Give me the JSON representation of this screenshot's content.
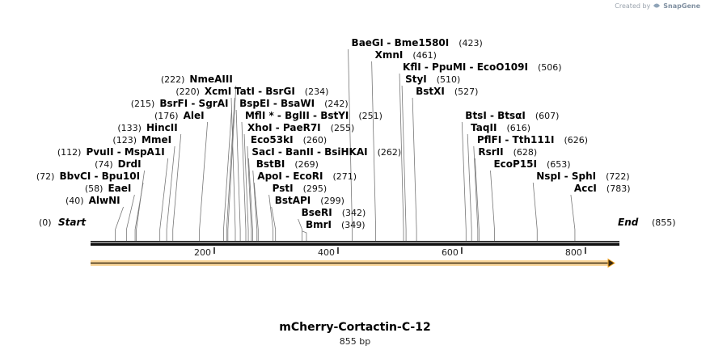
{
  "credit": {
    "prefix": "Created by",
    "brand": "SnapGene",
    "icon": "snapgene-logo-icon"
  },
  "plasmid": {
    "name": "mCherry-Cortactin-C-12",
    "length_label": "855 bp",
    "length_bp": 855
  },
  "ends": {
    "start": {
      "label": "Start",
      "pos": "(0)"
    },
    "end": {
      "label": "End",
      "pos": "(855)"
    }
  },
  "ticks": [
    {
      "bp": 200,
      "label": "200"
    },
    {
      "bp": 400,
      "label": "400"
    },
    {
      "bp": 600,
      "label": "600"
    },
    {
      "bp": 800,
      "label": "800"
    }
  ],
  "feature": {
    "type": "ORF",
    "direction": "forward",
    "start_bp": 0,
    "end_bp": 855,
    "color": "#f5a623"
  },
  "sites": [
    {
      "id": "alwni",
      "bp": 40,
      "pos": "(40)",
      "names": "AlwNI",
      "side": "left",
      "row": 11
    },
    {
      "id": "eaei",
      "bp": 58,
      "pos": "(58)",
      "names": "EaeI",
      "side": "left",
      "row": 10
    },
    {
      "id": "bbvci",
      "bp": 72,
      "pos": "(72)",
      "names": "BbvCI  - Bpu10I",
      "side": "left",
      "row": 9
    },
    {
      "id": "drdi",
      "bp": 74,
      "pos": "(74)",
      "names": "DrdI",
      "side": "left",
      "row": 8
    },
    {
      "id": "pvuii",
      "bp": 112,
      "pos": "(112)",
      "names": "PvuII  - MspA1I",
      "side": "left",
      "row": 7
    },
    {
      "id": "mmei",
      "bp": 123,
      "pos": "(123)",
      "names": "MmeI",
      "side": "left",
      "row": 6
    },
    {
      "id": "hincii",
      "bp": 133,
      "pos": "(133)",
      "names": "HincII",
      "side": "left",
      "row": 5
    },
    {
      "id": "alei",
      "bp": 176,
      "pos": "(176)",
      "names": "AleI",
      "side": "left",
      "row": 4
    },
    {
      "id": "bsrfi",
      "bp": 215,
      "pos": "(215)",
      "names": "BsrFI  - SgrAI",
      "side": "left",
      "row": 3
    },
    {
      "id": "xcmi",
      "bp": 220,
      "pos": "(220)",
      "names": "XcmI",
      "side": "left",
      "row": 2
    },
    {
      "id": "nmeaiii",
      "bp": 222,
      "pos": "(222)",
      "names": "NmeAIII",
      "side": "left",
      "row": 1
    },
    {
      "id": "tati",
      "bp": 234,
      "pos": "(234)",
      "names": "TatI  - BsrGI",
      "side": "right",
      "row": 2
    },
    {
      "id": "bspei",
      "bp": 242,
      "pos": "(242)",
      "names": "BspEI  - BsaWI",
      "side": "right",
      "row": 3
    },
    {
      "id": "mfli",
      "bp": 251,
      "pos": "(251)",
      "names": "MflI *  - BglII  - BstYI",
      "side": "right",
      "row": 4
    },
    {
      "id": "xhoi",
      "bp": 255,
      "pos": "(255)",
      "names": "XhoI  - PaeR7I",
      "side": "right",
      "row": 5
    },
    {
      "id": "eco53ki",
      "bp": 260,
      "pos": "(260)",
      "names": "Eco53kI",
      "side": "right",
      "row": 6
    },
    {
      "id": "saci",
      "bp": 262,
      "pos": "(262)",
      "names": "SacI  - BanII  - BsiHKAI",
      "side": "right",
      "row": 7
    },
    {
      "id": "bstbi",
      "bp": 269,
      "pos": "(269)",
      "names": "BstBI",
      "side": "right",
      "row": 8
    },
    {
      "id": "apoi",
      "bp": 271,
      "pos": "(271)",
      "names": "ApoI  - EcoRI",
      "side": "right",
      "row": 9
    },
    {
      "id": "psti",
      "bp": 295,
      "pos": "(295)",
      "names": "PstI",
      "side": "right",
      "row": 10
    },
    {
      "id": "bstapi",
      "bp": 299,
      "pos": "(299)",
      "names": "BstAPI",
      "side": "right",
      "row": 11
    },
    {
      "id": "bseri",
      "bp": 342,
      "pos": "(342)",
      "names": "BseRI",
      "side": "right",
      "row": 12
    },
    {
      "id": "bmri",
      "bp": 349,
      "pos": "(349)",
      "names": "BmrI",
      "side": "right",
      "row": 13
    },
    {
      "id": "baegi",
      "bp": 423,
      "pos": "(423)",
      "names": "BaeGI  - Bme1580I",
      "side": "right",
      "row": -2
    },
    {
      "id": "xmni",
      "bp": 461,
      "pos": "(461)",
      "names": "XmnI",
      "side": "right",
      "row": -1
    },
    {
      "id": "kfli",
      "bp": 506,
      "pos": "(506)",
      "names": "KflI  - PpuMI  - EcoO109I",
      "side": "right",
      "row": 0
    },
    {
      "id": "styi",
      "bp": 510,
      "pos": "(510)",
      "names": "StyI",
      "side": "right",
      "row": 1
    },
    {
      "id": "bstxi",
      "bp": 527,
      "pos": "(527)",
      "names": "BstXI",
      "side": "right",
      "row": 2
    },
    {
      "id": "btsi",
      "bp": 607,
      "pos": "(607)",
      "names": "BtsI  - BtsαI",
      "side": "right",
      "row": 4
    },
    {
      "id": "taqii",
      "bp": 616,
      "pos": "(616)",
      "names": "TaqII",
      "side": "right",
      "row": 5
    },
    {
      "id": "pflfi",
      "bp": 626,
      "pos": "(626)",
      "names": "PflFI  - Tth111I",
      "side": "right",
      "row": 6
    },
    {
      "id": "rsrii",
      "bp": 628,
      "pos": "(628)",
      "names": "RsrII",
      "side": "right",
      "row": 7
    },
    {
      "id": "ecop15i",
      "bp": 653,
      "pos": "(653)",
      "names": "EcoP15I",
      "side": "right",
      "row": 8
    },
    {
      "id": "nspi",
      "bp": 722,
      "pos": "(722)",
      "names": "NspI  - SphI",
      "side": "right",
      "row": 9
    },
    {
      "id": "acci",
      "bp": 783,
      "pos": "(783)",
      "names": "AccI",
      "side": "right",
      "row": 10
    }
  ]
}
